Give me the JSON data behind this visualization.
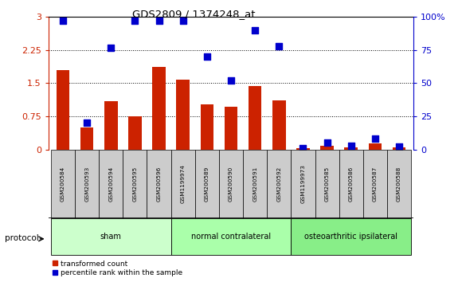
{
  "title": "GDS2809 / 1374248_at",
  "samples": [
    "GSM200584",
    "GSM200593",
    "GSM200594",
    "GSM200595",
    "GSM200596",
    "GSM1199974",
    "GSM200589",
    "GSM200590",
    "GSM200591",
    "GSM200592",
    "GSM1199973",
    "GSM200585",
    "GSM200586",
    "GSM200587",
    "GSM200588"
  ],
  "transformed_count": [
    1.8,
    0.5,
    1.1,
    0.75,
    1.87,
    1.58,
    1.02,
    0.97,
    1.43,
    1.12,
    0.03,
    0.09,
    0.05,
    0.13,
    0.05
  ],
  "percentile_rank": [
    97,
    20,
    77,
    97,
    97,
    97,
    70,
    52,
    90,
    78,
    1,
    5,
    3,
    8,
    2
  ],
  "groups": [
    {
      "label": "sham",
      "start": 0,
      "end": 5,
      "color": "#ccffcc"
    },
    {
      "label": "normal contralateral",
      "start": 5,
      "end": 10,
      "color": "#aaffaa"
    },
    {
      "label": "osteoarthritic ipsilateral",
      "start": 10,
      "end": 15,
      "color": "#88ee88"
    }
  ],
  "bar_color": "#cc2200",
  "dot_color": "#0000cc",
  "left_yticks": [
    0,
    0.75,
    1.5,
    2.25,
    3.0
  ],
  "left_ytick_labels": [
    "0",
    "0.75",
    "1.5",
    "2.25",
    "3"
  ],
  "right_yticks": [
    0,
    25,
    50,
    75,
    100
  ],
  "right_ytick_labels": [
    "0",
    "25",
    "50",
    "75",
    "100%"
  ],
  "ylim_left": [
    0,
    3.0
  ],
  "ylim_right": [
    0,
    100
  ],
  "protocol_label": "protocol",
  "legend": [
    {
      "label": "transformed count",
      "color": "#cc2200"
    },
    {
      "label": "percentile rank within the sample",
      "color": "#0000cc"
    }
  ],
  "bg_color": "#ffffff",
  "tick_label_bg": "#cccccc",
  "title_color": "#000000",
  "left_axis_color": "#cc2200",
  "right_axis_color": "#0000cc",
  "fig_width": 5.8,
  "fig_height": 3.54,
  "dpi": 100
}
